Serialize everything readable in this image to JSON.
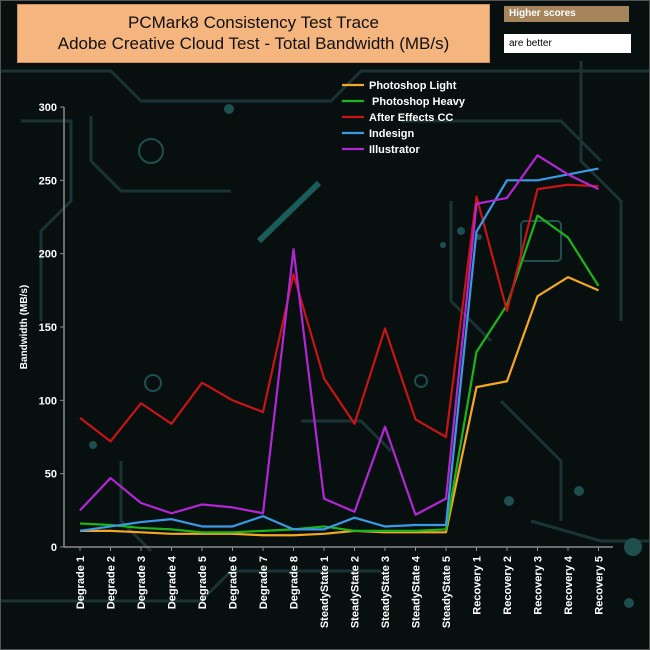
{
  "header": {
    "title_line1": "PCMark8 Consistency Test Trace",
    "title_line2": "Adobe Creative Cloud Test - Total Bandwidth (MB/s)",
    "note_line1": "Higher scores",
    "note_line2": "are better"
  },
  "chart_data": {
    "type": "line",
    "ylabel": "Bandwidth (MB/s)",
    "ylim": [
      0,
      300
    ],
    "yticks": [
      0,
      50,
      100,
      150,
      200,
      250,
      300
    ],
    "grid": false,
    "legend_position": "top-center",
    "categories": [
      "Degrade 1",
      "Degrade 2",
      "Degrade 3",
      "Degrade 4",
      "Degrade 5",
      "Degrade 6",
      "Degrade 7",
      "Degrade 8",
      "SteadyState 1",
      "SteadyState 2",
      "SteadyState 3",
      "SteadyState 4",
      "SteadyState 5",
      "Recovery 1",
      "Recovery 2",
      "Recovery 3",
      "Recovery 4",
      "Recovery 5"
    ],
    "series": [
      {
        "name": "Photoshop Light",
        "color": "#f5a623",
        "values": [
          11,
          11,
          10,
          9,
          9,
          9,
          8,
          8,
          9,
          11,
          10,
          10,
          10,
          109,
          113,
          171,
          184,
          175
        ]
      },
      {
        "name": " Photoshop Heavy",
        "color": "#1bb51b",
        "values": [
          16,
          15,
          13,
          12,
          10,
          10,
          11,
          12,
          14,
          11,
          11,
          11,
          12,
          133,
          165,
          226,
          211,
          178
        ]
      },
      {
        "name": "After Effects CC",
        "color": "#c81414",
        "values": [
          88,
          72,
          98,
          84,
          112,
          100,
          92,
          186,
          115,
          84,
          149,
          87,
          75,
          239,
          161,
          244,
          247,
          246
        ]
      },
      {
        "name": "Indesign",
        "color": "#3a9ae6",
        "values": [
          11,
          14,
          17,
          19,
          14,
          14,
          21,
          12,
          12,
          20,
          14,
          15,
          15,
          215,
          250,
          250,
          254,
          258
        ]
      },
      {
        "name": "Illustrator",
        "color": "#b326d6",
        "values": [
          25,
          47,
          30,
          23,
          29,
          27,
          23,
          203,
          33,
          24,
          82,
          22,
          33,
          234,
          238,
          267,
          254,
          244
        ]
      }
    ]
  }
}
